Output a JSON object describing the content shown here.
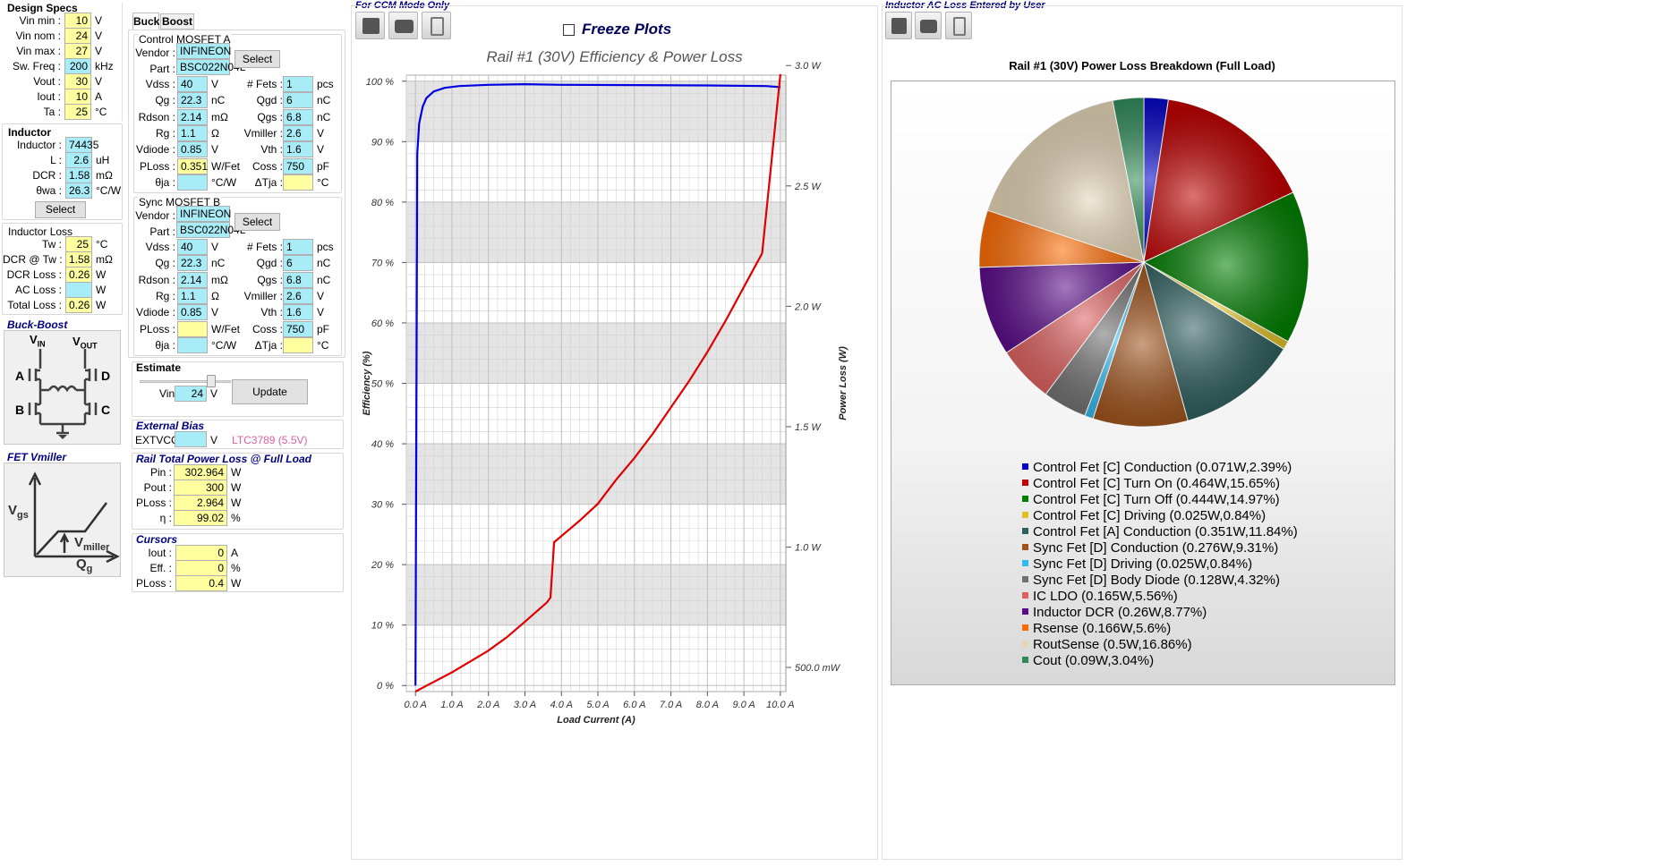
{
  "design_specs": {
    "title": "Design Specs",
    "rows": [
      {
        "label": "Vin min :",
        "value": "10",
        "unit": "V"
      },
      {
        "label": "Vin nom :",
        "value": "24",
        "unit": "V"
      },
      {
        "label": "Vin max :",
        "value": "27",
        "unit": "V"
      },
      {
        "label": "Sw. Freq :",
        "value": "200",
        "unit": "kHz"
      },
      {
        "label": "Vout :",
        "value": "30",
        "unit": "V"
      },
      {
        "label": "Iout :",
        "value": "10",
        "unit": "A"
      },
      {
        "label": "Ta :",
        "value": "25",
        "unit": "°C"
      }
    ]
  },
  "inductor": {
    "title": "Inductor",
    "rows": [
      {
        "label": "Inductor :",
        "value": "74435",
        "unit": ""
      },
      {
        "label": "L :",
        "value": "2.6",
        "unit": "uH"
      },
      {
        "label": "DCR :",
        "value": "1.58",
        "unit": "mΩ"
      },
      {
        "label": "θwa :",
        "value": "26.3",
        "unit": "°C/W"
      }
    ],
    "select_label": "Select"
  },
  "inductor_loss": {
    "title": "Inductor Loss",
    "rows": [
      {
        "label": "Tw :",
        "value": "25",
        "unit": "°C"
      },
      {
        "label": "DCR @ Tw :",
        "value": "1.58",
        "unit": "mΩ"
      },
      {
        "label": "DCR Loss :",
        "value": "0.26",
        "unit": "W"
      },
      {
        "label": "AC Loss :",
        "value": "",
        "unit": "W"
      },
      {
        "label": "Total Loss :",
        "value": "0.26",
        "unit": "W"
      }
    ]
  },
  "buck_boost": {
    "title": "Buck-Boost",
    "vin": "V",
    "vin_sub": "IN",
    "vout": "V",
    "vout_sub": "OUT",
    "a": "A",
    "b": "B",
    "c": "C",
    "d": "D"
  },
  "fet_vmiller": {
    "title": "FET Vmiller",
    "vgs": "V",
    "vgs_sub": "gs",
    "vmiller": "V",
    "vmiller_sub": "miller",
    "qg": "Q",
    "qg_sub": "g"
  },
  "tabs": [
    {
      "label": "Buck"
    },
    {
      "label": "Boost"
    }
  ],
  "control_mosfet": {
    "title": "Control MOSFET A",
    "vendor_label": "Vendor :",
    "vendor": "INFINEON",
    "part_label": "Part :",
    "part": "BSC022N04L",
    "select_label": "Select",
    "left": [
      {
        "label": "Vdss :",
        "value": "40",
        "unit": "V",
        "color": "cyn"
      },
      {
        "label": "Qg :",
        "value": "22.3",
        "unit": "nC",
        "color": "cyn"
      },
      {
        "label": "Rdson :",
        "value": "2.14",
        "unit": "mΩ",
        "color": "cyn"
      },
      {
        "label": "Rg :",
        "value": "1.1",
        "unit": "Ω",
        "color": "cyn"
      },
      {
        "label": "Vdiode :",
        "value": "0.85",
        "unit": "V",
        "color": "cyn"
      },
      {
        "label": "PLoss :",
        "value": "0.351",
        "unit": "W/Fet",
        "color": "yel"
      },
      {
        "label": "θja :",
        "value": "",
        "unit": "°C/W",
        "color": "cyn"
      }
    ],
    "right": [
      {
        "label": "# Fets :",
        "value": "1",
        "unit": "pcs",
        "color": "cyn"
      },
      {
        "label": "Qgd :",
        "value": "6",
        "unit": "nC",
        "color": "cyn"
      },
      {
        "label": "Qgs :",
        "value": "6.8",
        "unit": "nC",
        "color": "cyn"
      },
      {
        "label": "Vmiller :",
        "value": "2.6",
        "unit": "V",
        "color": "cyn"
      },
      {
        "label": "Vth :",
        "value": "1.6",
        "unit": "V",
        "color": "cyn"
      },
      {
        "label": "Coss :",
        "value": "750",
        "unit": "pF",
        "color": "cyn"
      },
      {
        "label": "ΔTja :",
        "value": "",
        "unit": "°C",
        "color": "yel"
      }
    ]
  },
  "sync_mosfet": {
    "title": "Sync MOSFET B",
    "vendor_label": "Vendor :",
    "vendor": "INFINEON",
    "part_label": "Part :",
    "part": "BSC022N04L",
    "select_label": "Select",
    "left": [
      {
        "label": "Vdss :",
        "value": "40",
        "unit": "V",
        "color": "cyn"
      },
      {
        "label": "Qg :",
        "value": "22.3",
        "unit": "nC",
        "color": "cyn"
      },
      {
        "label": "Rdson :",
        "value": "2.14",
        "unit": "mΩ",
        "color": "cyn"
      },
      {
        "label": "Rg :",
        "value": "1.1",
        "unit": "Ω",
        "color": "cyn"
      },
      {
        "label": "Vdiode :",
        "value": "0.85",
        "unit": "V",
        "color": "cyn"
      },
      {
        "label": "PLoss :",
        "value": "",
        "unit": "W/Fet",
        "color": "yel"
      },
      {
        "label": "θja :",
        "value": "",
        "unit": "°C/W",
        "color": "cyn"
      }
    ],
    "right": [
      {
        "label": "# Fets :",
        "value": "1",
        "unit": "pcs",
        "color": "cyn"
      },
      {
        "label": "Qgd :",
        "value": "6",
        "unit": "nC",
        "color": "cyn"
      },
      {
        "label": "Qgs :",
        "value": "6.8",
        "unit": "nC",
        "color": "cyn"
      },
      {
        "label": "Vmiller :",
        "value": "2.6",
        "unit": "V",
        "color": "cyn"
      },
      {
        "label": "Vth :",
        "value": "1.6",
        "unit": "V",
        "color": "cyn"
      },
      {
        "label": "Coss :",
        "value": "750",
        "unit": "pF",
        "color": "cyn"
      },
      {
        "label": "ΔTja :",
        "value": "",
        "unit": "°C",
        "color": "yel"
      }
    ]
  },
  "estimate": {
    "title": "Estimate",
    "vin_label": "Vin",
    "vin_value": "24",
    "vin_unit": "V",
    "update_label": "Update",
    "slider_fraction": 0.82
  },
  "external_bias": {
    "title": "External Bias",
    "label": "EXTVCC :",
    "value": "",
    "unit": "V",
    "note": "LTC3789 (5.5V)"
  },
  "rail_total": {
    "title": "Rail Total Power Loss @ Full Load",
    "rows": [
      {
        "label": "Pin :",
        "value": "302.964",
        "unit": "W"
      },
      {
        "label": "Pout :",
        "value": "300",
        "unit": "W"
      },
      {
        "label": "PLoss :",
        "value": "2.964",
        "unit": "W"
      },
      {
        "label": "η :",
        "value": "99.02",
        "unit": "%"
      }
    ]
  },
  "cursors": {
    "title": "Cursors",
    "rows": [
      {
        "label": "Iout :",
        "value": "0",
        "unit": "A"
      },
      {
        "label": "Eff. :",
        "value": "0",
        "unit": "%"
      },
      {
        "label": "PLoss :",
        "value": "0.4",
        "unit": "W"
      }
    ]
  },
  "middle": {
    "header": "For CCM Mode Only",
    "freeze_label": "Freeze Plots",
    "toolbar": [
      {
        "icon": "save-icon"
      },
      {
        "icon": "camera-icon"
      },
      {
        "icon": "clipboard-icon"
      }
    ]
  },
  "right": {
    "header": "Inductor AC Loss Entered by User",
    "toolbar": [
      {
        "icon": "save-icon"
      },
      {
        "icon": "camera-icon"
      },
      {
        "icon": "clipboard-icon"
      }
    ]
  },
  "chart_data": [
    {
      "type": "line",
      "title": "Rail #1 (30V) Efficiency & Power Loss",
      "xlabel": "Load Current (A)",
      "ylabel": "Efficiency (%)",
      "y2label": "Power Loss (W)",
      "xlim": [
        -0.25,
        10.15
      ],
      "ylim": [
        -1,
        101
      ],
      "y2lim": [
        0.4,
        2.96
      ],
      "x_ticks": [
        "0.0 A",
        "1.0 A",
        "2.0 A",
        "3.0 A",
        "4.0 A",
        "5.0 A",
        "6.0 A",
        "7.0 A",
        "8.0 A",
        "9.0 A",
        "10.0 A"
      ],
      "y_ticks": [
        "0 %",
        "10 %",
        "20 %",
        "30 %",
        "40 %",
        "50 %",
        "60 %",
        "70 %",
        "80 %",
        "90 %",
        "100 %"
      ],
      "y2_ticks": [
        "500.0 mW",
        "1.0 W",
        "1.5 W",
        "2.0 W",
        "2.5 W",
        "3.0 W"
      ],
      "grid": true,
      "series": [
        {
          "color": "#0000e0",
          "axis": "left",
          "x": [
            0,
            0.05,
            0.1,
            0.2,
            0.3,
            0.5,
            0.8,
            1.2,
            2,
            3,
            4,
            6,
            8,
            9.6,
            10
          ],
          "y": [
            0,
            88,
            93,
            95.8,
            97.2,
            98.3,
            98.9,
            99.2,
            99.4,
            99.5,
            99.4,
            99.35,
            99.3,
            99.2,
            99.02
          ]
        },
        {
          "color": "#e00000",
          "axis": "right",
          "x": [
            0,
            0.5,
            1,
            1.5,
            2,
            2.5,
            3,
            3.3,
            3.6,
            3.7,
            3.8,
            4.5,
            5,
            5.5,
            6,
            6.5,
            7,
            7.5,
            8,
            8.5,
            9,
            9.5,
            10
          ],
          "y": [
            0.4,
            0.44,
            0.48,
            0.525,
            0.57,
            0.625,
            0.69,
            0.73,
            0.77,
            0.79,
            1.02,
            1.11,
            1.18,
            1.28,
            1.37,
            1.47,
            1.58,
            1.69,
            1.81,
            1.94,
            2.08,
            2.22,
            2.964
          ]
        }
      ]
    },
    {
      "type": "pie",
      "title": "Rail #1 (30V) Power Loss Breakdown (Full Load)",
      "slices": [
        {
          "label": "Control Fet [C] Conduction (0.071W,2.39%)",
          "value": 2.39,
          "color": "#0000c8"
        },
        {
          "label": "Control Fet [C] Turn On (0.464W,15.65%)",
          "value": 15.65,
          "color": "#c00000"
        },
        {
          "label": "Control Fet [C] Turn Off (0.444W,14.97%)",
          "value": 14.97,
          "color": "#008000"
        },
        {
          "label": "Control Fet [C] Driving (0.025W,0.84%)",
          "value": 0.84,
          "color": "#e0c020"
        },
        {
          "label": "Control Fet [A] Conduction (0.351W,11.84%)",
          "value": 11.84,
          "color": "#2f5f5f"
        },
        {
          "label": "Sync Fet [D] Conduction (0.276W,9.31%)",
          "value": 9.31,
          "color": "#a0521a"
        },
        {
          "label": "Sync Fet [D] Driving (0.025W,0.84%)",
          "value": 0.84,
          "color": "#30b8f0"
        },
        {
          "label": "Sync Fet [D] Body Diode (0.128W,4.32%)",
          "value": 4.32,
          "color": "#707070"
        },
        {
          "label": "IC LDO (0.165W,5.56%)",
          "value": 5.56,
          "color": "#e06060"
        },
        {
          "label": "Inductor DCR (0.26W,8.77%)",
          "value": 8.77,
          "color": "#5a0a8a"
        },
        {
          "label": "Rsense (0.166W,5.6%)",
          "value": 5.6,
          "color": "#ff6a00"
        },
        {
          "label": "RoutSense (0.5W,16.86%)",
          "value": 16.86,
          "color": "#e6d6b8"
        },
        {
          "label": "Cout (0.09W,3.04%)",
          "value": 3.04,
          "color": "#2e8b57"
        }
      ]
    }
  ]
}
